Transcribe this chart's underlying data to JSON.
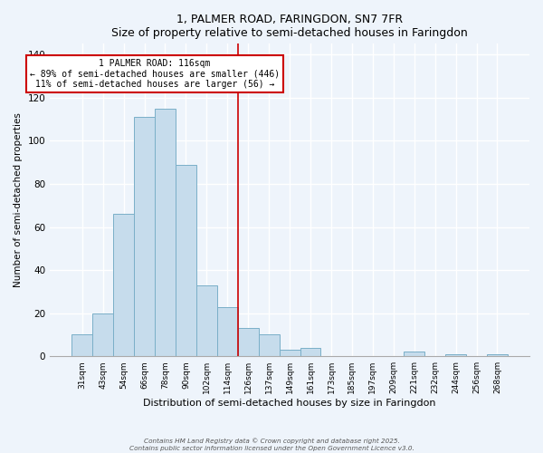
{
  "title": "1, PALMER ROAD, FARINGDON, SN7 7FR",
  "subtitle": "Size of property relative to semi-detached houses in Faringdon",
  "xlabel": "Distribution of semi-detached houses by size in Faringdon",
  "ylabel": "Number of semi-detached properties",
  "bar_labels": [
    "31sqm",
    "43sqm",
    "54sqm",
    "66sqm",
    "78sqm",
    "90sqm",
    "102sqm",
    "114sqm",
    "126sqm",
    "137sqm",
    "149sqm",
    "161sqm",
    "173sqm",
    "185sqm",
    "197sqm",
    "209sqm",
    "221sqm",
    "232sqm",
    "244sqm",
    "256sqm",
    "268sqm"
  ],
  "bar_values": [
    10,
    20,
    66,
    111,
    115,
    89,
    33,
    23,
    13,
    10,
    3,
    4,
    0,
    0,
    0,
    0,
    2,
    0,
    1,
    0,
    1
  ],
  "bar_color": "#c6dcec",
  "bar_edge_color": "#7aafc8",
  "background_color": "#eef4fb",
  "grid_color": "#ffffff",
  "vline_x_index": 7,
  "vline_color": "#cc0000",
  "annotation_title": "1 PALMER ROAD: 116sqm",
  "annotation_line1": "← 89% of semi-detached houses are smaller (446)",
  "annotation_line2": "11% of semi-detached houses are larger (56) →",
  "annotation_box_color": "#ffffff",
  "annotation_box_edge": "#cc0000",
  "ylim": [
    0,
    145
  ],
  "yticks": [
    0,
    20,
    40,
    60,
    80,
    100,
    120,
    140
  ],
  "footer1": "Contains HM Land Registry data © Crown copyright and database right 2025.",
  "footer2": "Contains public sector information licensed under the Open Government Licence v3.0."
}
